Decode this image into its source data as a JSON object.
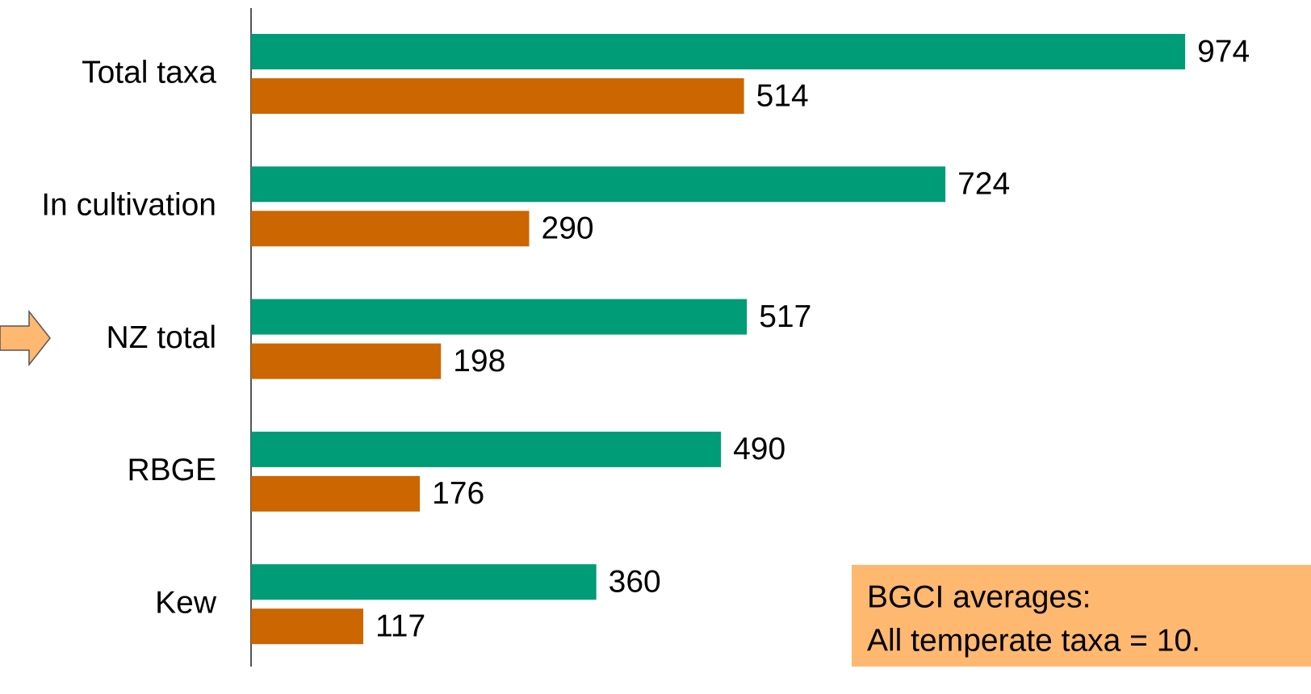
{
  "chart_data": {
    "type": "bar",
    "orientation": "horizontal",
    "categories": [
      "Total taxa",
      "In cultivation",
      "NZ total",
      "RBGE",
      "Kew"
    ],
    "series": [
      {
        "color": "#009b77",
        "values": [
          974,
          724,
          517,
          490,
          360
        ]
      },
      {
        "color": "#cc6600",
        "values": [
          514,
          290,
          198,
          176,
          117
        ]
      }
    ],
    "annotation": {
      "lines": [
        "BGCI averages:",
        "All temperate taxa = 10."
      ]
    }
  }
}
